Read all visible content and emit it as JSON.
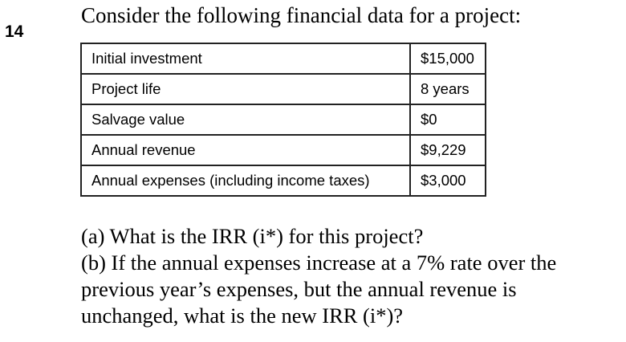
{
  "problem": {
    "number": "14",
    "intro": "Consider the following financial data for a project:",
    "table": [
      {
        "label": "Initial investment",
        "value": "$15,000"
      },
      {
        "label": "Project life",
        "value": "8 years"
      },
      {
        "label": "Salvage value",
        "value": "$0"
      },
      {
        "label": "Annual revenue",
        "value": "$9,229"
      },
      {
        "label": "Annual expenses (including income taxes)",
        "value": "$3,000"
      }
    ],
    "questions": [
      "(a) What is the IRR (i*) for this project?",
      "(b) If the annual expenses increase at a 7% rate over the",
      "previous year’s expenses, but the annual revenue is",
      "unchanged, what is the new IRR (i*)?"
    ]
  }
}
